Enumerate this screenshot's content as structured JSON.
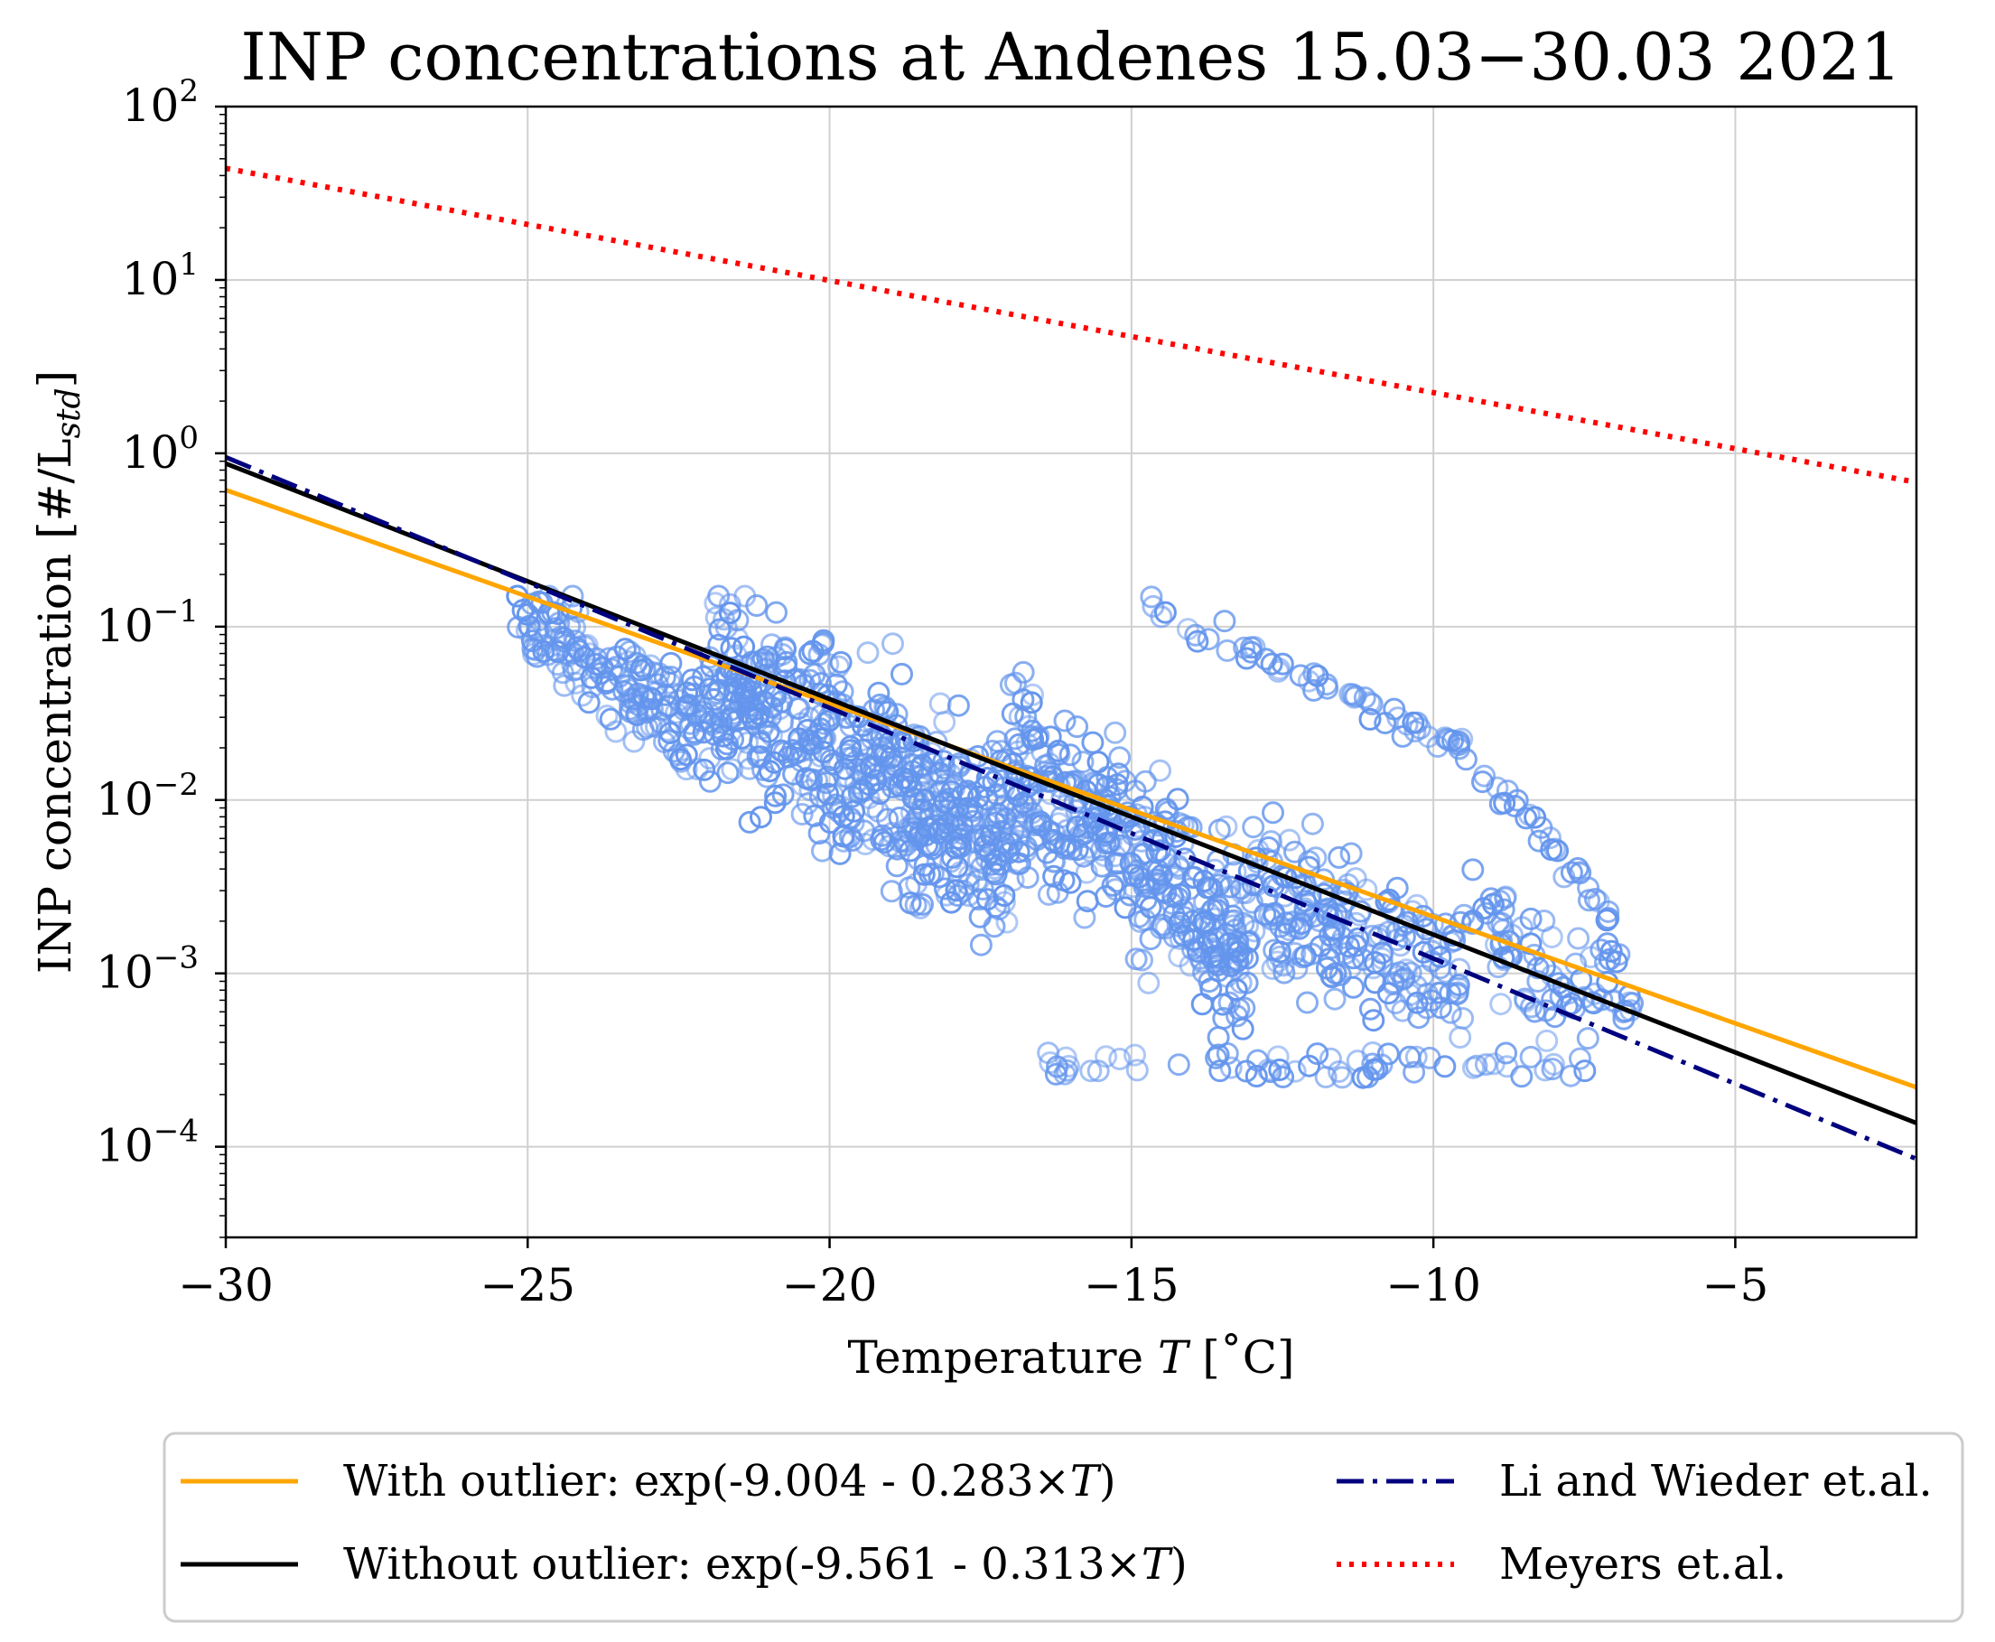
{
  "chart_data": {
    "type": "scatter",
    "title": "INP concentrations at Andenes 15.03−30.03 2021",
    "xlabel_prefix": "Temperature ",
    "xlabel_var": "T",
    "xlabel_suffix": " [˚C]",
    "ylabel_prefix": "INP concentration [#/L",
    "ylabel_sub": "std",
    "ylabel_suffix": "]",
    "xlim": [
      -30,
      -2
    ],
    "ylim": [
      3e-05,
      100
    ],
    "yscale": "log",
    "grid": true,
    "x_ticks": [
      -30,
      -25,
      -20,
      -15,
      -10,
      -5
    ],
    "x_tick_labels": [
      "−30",
      "−25",
      "−20",
      "−15",
      "−10",
      "−5"
    ],
    "y_ticks": [
      {
        "value": 0.0001,
        "base": "10",
        "exp": "−4"
      },
      {
        "value": 0.001,
        "base": "10",
        "exp": "−3"
      },
      {
        "value": 0.01,
        "base": "10",
        "exp": "−2"
      },
      {
        "value": 0.1,
        "base": "10",
        "exp": "−1"
      },
      {
        "value": 1,
        "base": "10",
        "exp": "0"
      },
      {
        "value": 10,
        "base": "10",
        "exp": "1"
      },
      {
        "value": 100,
        "base": "10",
        "exp": "2"
      }
    ],
    "scatter_color": "#6495ED",
    "series": [
      {
        "name_prefix": "With outlier: exp(-9.004 - 0.283×",
        "name_var": "T",
        "name_suffix": ")",
        "kind": "line",
        "color": "#FFA500",
        "dash": "solid",
        "x": [
          -30,
          -2
        ],
        "y": [
          0.6142,
          0.00022
        ]
      },
      {
        "name_prefix": "Without outlier: exp(-9.561 - 0.313×",
        "name_var": "T",
        "name_suffix": ")",
        "kind": "line",
        "color": "#000000",
        "dash": "solid",
        "x": [
          -30,
          -2
        ],
        "y": [
          0.8735,
          0.000137
        ]
      },
      {
        "name": "Li and Wieder et.al.",
        "kind": "line",
        "color": "#00007F",
        "dash": "dashdot",
        "x": [
          -30,
          -2
        ],
        "y": [
          0.95,
          8.5e-05
        ]
      },
      {
        "name": "Meyers et.al.",
        "kind": "line",
        "color": "#FF0000",
        "dash": "dotted",
        "x": [
          -30,
          -2
        ],
        "y": [
          44,
          0.68
        ]
      }
    ],
    "scatter_clusters": [
      {
        "x_range": [
          -25.2,
          -22.0
        ],
        "y_center_at_x0": 0.11,
        "slope_log10_per_deg": -0.2,
        "spread_log10": 0.28,
        "count": 160
      },
      {
        "x_range": [
          -22.0,
          -17.0
        ],
        "y_center_at_x0": 0.05,
        "slope_log10_per_deg": -0.2,
        "spread_log10": 0.55,
        "count": 520
      },
      {
        "x_range": [
          -17.0,
          -13.0
        ],
        "y_center_at_x0": 0.016,
        "slope_log10_per_deg": -0.26,
        "spread_log10": 0.55,
        "count": 360
      },
      {
        "x_range": [
          -13.0,
          -9.5
        ],
        "y_center_at_x0": 0.0035,
        "slope_log10_per_deg": -0.18,
        "spread_log10": 0.45,
        "count": 190
      },
      {
        "x_range": [
          -9.5,
          -6.7
        ],
        "y_center_at_x0": 0.002,
        "slope_log10_per_deg": -0.2,
        "spread_log10": 0.35,
        "count": 80
      }
    ],
    "scatter_arm": {
      "x": [
        -14.7,
        -14.0,
        -13.4,
        -12.8,
        -12.3,
        -11.8,
        -11.3,
        -10.8,
        -10.4,
        -10.0,
        -9.6,
        -9.2,
        -8.8,
        -8.4,
        -8.0,
        -7.6,
        -7.2,
        -6.9
      ],
      "y": [
        0.13,
        0.1,
        0.08,
        0.066,
        0.052,
        0.045,
        0.037,
        0.03,
        0.027,
        0.023,
        0.02,
        0.014,
        0.01,
        0.0075,
        0.0055,
        0.004,
        0.0025,
        0.0012
      ]
    },
    "scatter_low_row": {
      "x_range": [
        -16.5,
        -7.5
      ],
      "y": [
        0.00025,
        0.00035
      ]
    }
  }
}
